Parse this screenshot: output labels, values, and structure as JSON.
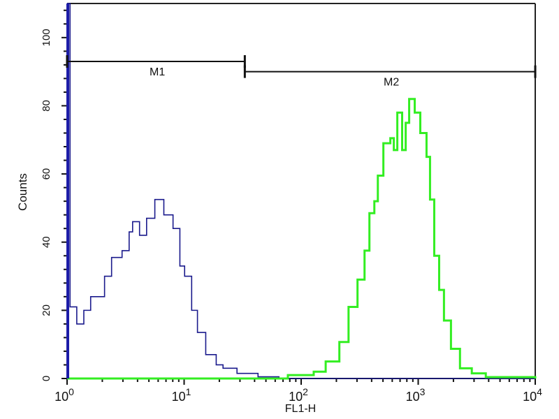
{
  "chart_data": {
    "type": "line",
    "subtype": "flow-cytometry-histogram",
    "xlabel": "FL1-H",
    "ylabel": "Counts",
    "xscale": "log",
    "xlim": [
      1,
      10000
    ],
    "ylim": [
      0,
      110
    ],
    "x_tick_labels": [
      {
        "base": "10",
        "exp": "0",
        "value": 1
      },
      {
        "base": "10",
        "exp": "1",
        "value": 10
      },
      {
        "base": "10",
        "exp": "2",
        "value": 100
      },
      {
        "base": "10",
        "exp": "3",
        "value": 1000
      },
      {
        "base": "10",
        "exp": "4",
        "value": 10000
      }
    ],
    "y_ticks": [
      "0",
      "20",
      "40",
      "60",
      "80",
      "100"
    ],
    "grid": false,
    "markers": [
      {
        "label": "M1",
        "range": [
          1,
          33
        ],
        "level": 93
      },
      {
        "label": "M2",
        "range": [
          33,
          10000
        ],
        "level": 90
      }
    ],
    "series": [
      {
        "color": "#1a1a8c",
        "x": [
          1,
          1.06,
          1.21,
          1.39,
          1.59,
          2.09,
          2.4,
          2.95,
          3.39,
          3.63,
          4.16,
          4.78,
          5.62,
          6.71,
          8.04,
          9.2,
          10.1,
          11.6,
          13.0,
          15.3,
          18.8,
          21.5,
          28.3,
          42.8,
          64.6,
          10000
        ],
        "y": [
          110,
          21,
          16,
          20,
          24,
          30,
          35.5,
          37.5,
          43,
          46,
          42,
          47,
          52.5,
          48,
          44,
          33,
          30,
          20,
          13.5,
          7,
          4,
          3,
          1.5,
          0.5,
          0,
          0
        ]
      },
      {
        "color": "#33ee22",
        "x": [
          1,
          77,
          128,
          162,
          212,
          254,
          303,
          348,
          383,
          422,
          452,
          504,
          578,
          619,
          663,
          729,
          782,
          837,
          934,
          1042,
          1178,
          1262,
          1371,
          1510,
          1660,
          1905,
          2275,
          2870,
          3780,
          10000
        ],
        "y": [
          0,
          1,
          2,
          5,
          10.7,
          21,
          29,
          37.5,
          48.5,
          52,
          59.5,
          69,
          70.5,
          67,
          78,
          67,
          75,
          82,
          78,
          72,
          65,
          52.5,
          36,
          26,
          17,
          8.7,
          3,
          1.5,
          0.4,
          0
        ]
      }
    ]
  }
}
